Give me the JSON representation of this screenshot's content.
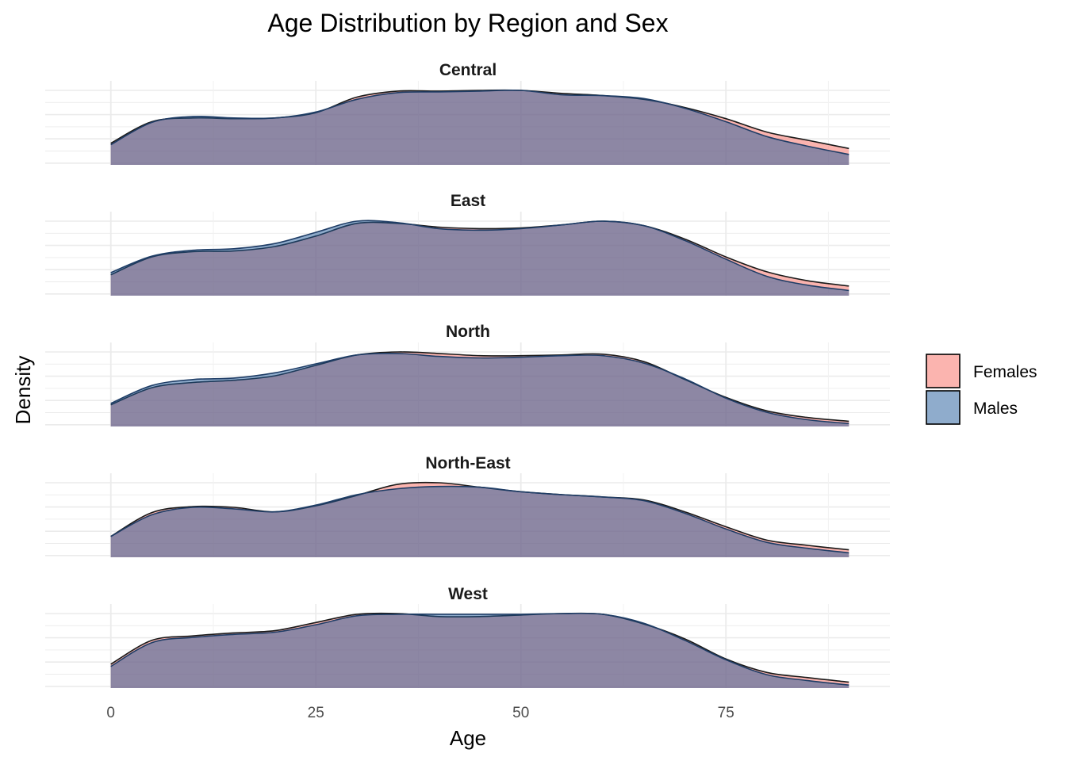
{
  "chart_data": {
    "type": "area",
    "title": "Age Distribution by Region and Sex",
    "xlabel": "Age",
    "ylabel": "Density",
    "xlim": [
      -8,
      95
    ],
    "ylim": [
      0,
      1
    ],
    "x_ticks": [
      0,
      25,
      50,
      75
    ],
    "x_tick_labels": [
      "0",
      "25",
      "50",
      "75"
    ],
    "grid": true,
    "legend_position": "right",
    "colors": {
      "Females": "#F8766D",
      "Males": "#1F5A9A",
      "overlap": "#8C92AC"
    },
    "x": [
      0,
      5,
      10,
      15,
      20,
      25,
      30,
      35,
      40,
      45,
      50,
      55,
      60,
      65,
      70,
      75,
      80,
      85,
      90
    ],
    "panels": [
      {
        "name": "Central",
        "series": [
          {
            "name": "Females",
            "values": [
              0.29,
              0.58,
              0.63,
              0.62,
              0.63,
              0.7,
              0.91,
              0.99,
              0.99,
              1.0,
              1.0,
              0.96,
              0.93,
              0.88,
              0.77,
              0.62,
              0.44,
              0.33,
              0.22
            ]
          },
          {
            "name": "Males",
            "values": [
              0.27,
              0.57,
              0.65,
              0.63,
              0.63,
              0.71,
              0.88,
              0.97,
              0.98,
              0.99,
              1.0,
              0.94,
              0.93,
              0.89,
              0.76,
              0.58,
              0.38,
              0.25,
              0.14
            ]
          }
        ]
      },
      {
        "name": "East",
        "series": [
          {
            "name": "Females",
            "values": [
              0.28,
              0.52,
              0.59,
              0.6,
              0.66,
              0.8,
              0.97,
              0.97,
              0.92,
              0.9,
              0.91,
              0.95,
              1.0,
              0.94,
              0.76,
              0.52,
              0.32,
              0.2,
              0.13
            ]
          },
          {
            "name": "Males",
            "values": [
              0.31,
              0.53,
              0.61,
              0.63,
              0.7,
              0.85,
              1.0,
              0.98,
              0.9,
              0.88,
              0.9,
              0.95,
              1.0,
              0.94,
              0.74,
              0.49,
              0.26,
              0.14,
              0.07
            ]
          }
        ]
      },
      {
        "name": "North",
        "series": [
          {
            "name": "Females",
            "values": [
              0.29,
              0.52,
              0.59,
              0.62,
              0.68,
              0.82,
              0.96,
              1.0,
              0.98,
              0.95,
              0.95,
              0.96,
              0.97,
              0.87,
              0.63,
              0.39,
              0.21,
              0.12,
              0.07
            ]
          },
          {
            "name": "Males",
            "values": [
              0.31,
              0.55,
              0.63,
              0.65,
              0.72,
              0.84,
              0.96,
              0.98,
              0.94,
              0.92,
              0.93,
              0.95,
              0.95,
              0.85,
              0.64,
              0.38,
              0.19,
              0.09,
              0.04
            ]
          }
        ]
      },
      {
        "name": "North-East",
        "series": [
          {
            "name": "Females",
            "values": [
              0.28,
              0.6,
              0.68,
              0.67,
              0.61,
              0.69,
              0.83,
              0.98,
              1.0,
              0.94,
              0.88,
              0.84,
              0.81,
              0.77,
              0.61,
              0.41,
              0.23,
              0.16,
              0.1
            ]
          },
          {
            "name": "Males",
            "values": [
              0.28,
              0.57,
              0.67,
              0.65,
              0.61,
              0.7,
              0.84,
              0.92,
              0.95,
              0.94,
              0.88,
              0.84,
              0.81,
              0.76,
              0.59,
              0.38,
              0.2,
              0.12,
              0.06
            ]
          }
        ]
      },
      {
        "name": "West",
        "series": [
          {
            "name": "Females",
            "values": [
              0.32,
              0.64,
              0.7,
              0.74,
              0.77,
              0.88,
              0.99,
              1.0,
              0.96,
              0.96,
              0.98,
              1.0,
              0.99,
              0.86,
              0.66,
              0.39,
              0.21,
              0.14,
              0.08
            ]
          },
          {
            "name": "Males",
            "values": [
              0.29,
              0.61,
              0.68,
              0.72,
              0.75,
              0.85,
              0.97,
              0.99,
              0.99,
              0.99,
              0.99,
              1.0,
              0.99,
              0.87,
              0.64,
              0.38,
              0.18,
              0.1,
              0.04
            ]
          }
        ]
      }
    ]
  }
}
